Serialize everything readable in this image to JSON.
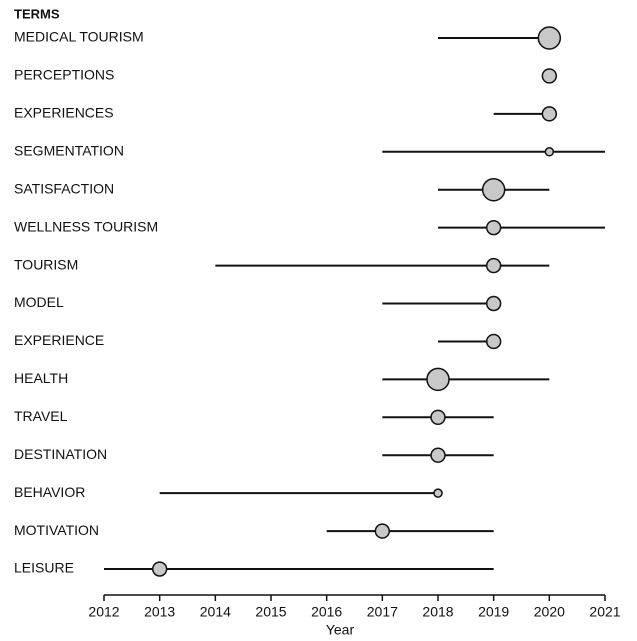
{
  "chart_data": {
    "type": "trend",
    "title": "TERMS",
    "xlabel": "Year",
    "categories": [
      "MEDICAL TOURISM",
      "PERCEPTIONS",
      "EXPERIENCES",
      "SEGMENTATION",
      "SATISFACTION",
      "WELLNESS TOURISM",
      "TOURISM",
      "MODEL",
      "EXPERIENCE",
      "HEALTH",
      "TRAVEL",
      "DESTINATION",
      "BEHAVIOR",
      "MOTIVATION",
      "LEISURE"
    ],
    "start": [
      2018,
      2020,
      2019,
      2017,
      2018,
      2018,
      2014,
      2017,
      2018,
      2017,
      2017,
      2017,
      2013,
      2016,
      2012
    ],
    "median": [
      2020,
      2020,
      2020,
      2020,
      2019,
      2019,
      2019,
      2019,
      2019,
      2018,
      2018,
      2018,
      2018,
      2017,
      2013
    ],
    "end": [
      2020,
      2020,
      2020,
      2021,
      2020,
      2021,
      2020,
      2019,
      2019,
      2020,
      2019,
      2019,
      2018,
      2019,
      2019
    ],
    "size": [
      30,
      12,
      12,
      4,
      30,
      12,
      12,
      12,
      12,
      30,
      12,
      12,
      4,
      12,
      12
    ],
    "color": "#c8c8c8",
    "xlim": [
      2012,
      2021
    ],
    "xticks": [
      2012,
      2013,
      2014,
      2015,
      2016,
      2017,
      2018,
      2019,
      2020,
      2021
    ]
  }
}
